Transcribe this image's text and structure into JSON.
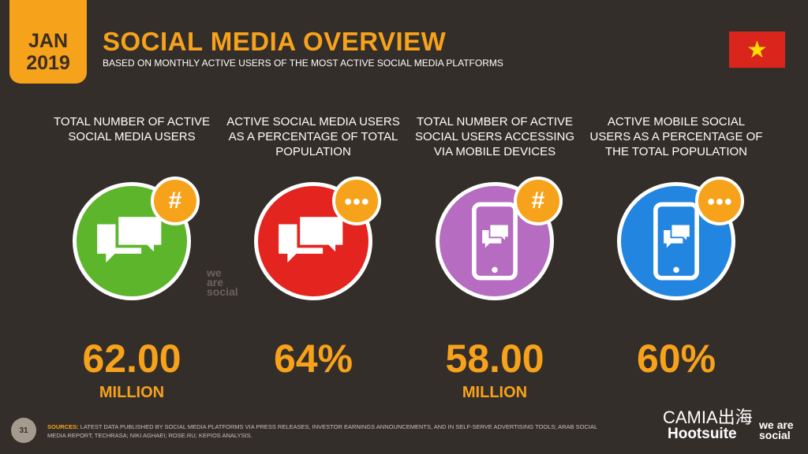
{
  "header": {
    "date_month": "JAN",
    "date_year": "2019",
    "title": "SOCIAL MEDIA OVERVIEW",
    "subtitle": "BASED ON MONTHLY ACTIVE USERS OF THE MOST ACTIVE SOCIAL MEDIA PLATFORMS",
    "flag": "vietnam-flag",
    "flag_star": "★"
  },
  "stats": [
    {
      "label": "TOTAL NUMBER OF ACTIVE SOCIAL MEDIA USERS",
      "value": "62.00",
      "unit": "MILLION",
      "color": "#5db52c",
      "icon": "speech-bubbles-icon",
      "badge": "#"
    },
    {
      "label": "ACTIVE SOCIAL MEDIA USERS AS A PERCENTAGE OF TOTAL POPULATION",
      "value": "64%",
      "unit": "",
      "color": "#e3241f",
      "icon": "speech-bubbles-icon",
      "badge": "people"
    },
    {
      "label": "TOTAL NUMBER OF ACTIVE SOCIAL USERS ACCESSING VIA MOBILE DEVICES",
      "value": "58.00",
      "unit": "MILLION",
      "color": "#b56cc1",
      "icon": "mobile-chat-icon",
      "badge": "#"
    },
    {
      "label": "ACTIVE MOBILE SOCIAL USERS AS A PERCENTAGE OF THE TOTAL POPULATION",
      "value": "60%",
      "unit": "",
      "color": "#2285e0",
      "icon": "mobile-chat-icon",
      "badge": "people"
    }
  ],
  "footer": {
    "page": "31",
    "sources_label": "SOURCES:",
    "sources_text": "LATEST DATA PUBLISHED BY SOCIAL MEDIA PLATFORMS VIA PRESS RELEASES, INVESTOR EARNINGS ANNOUNCEMENTS, AND IN SELF-SERVE ADVERTISING TOOLS; ARAB SOCIAL MEDIA REPORT; TECHRASA; NIKI AGHAEI; ROSE.RU; KEPIOS ANALYSIS.",
    "watermark": "CAMIA出海",
    "logo_hootsuite": "Hootsuite",
    "logo_wearesocial": "we are social"
  }
}
